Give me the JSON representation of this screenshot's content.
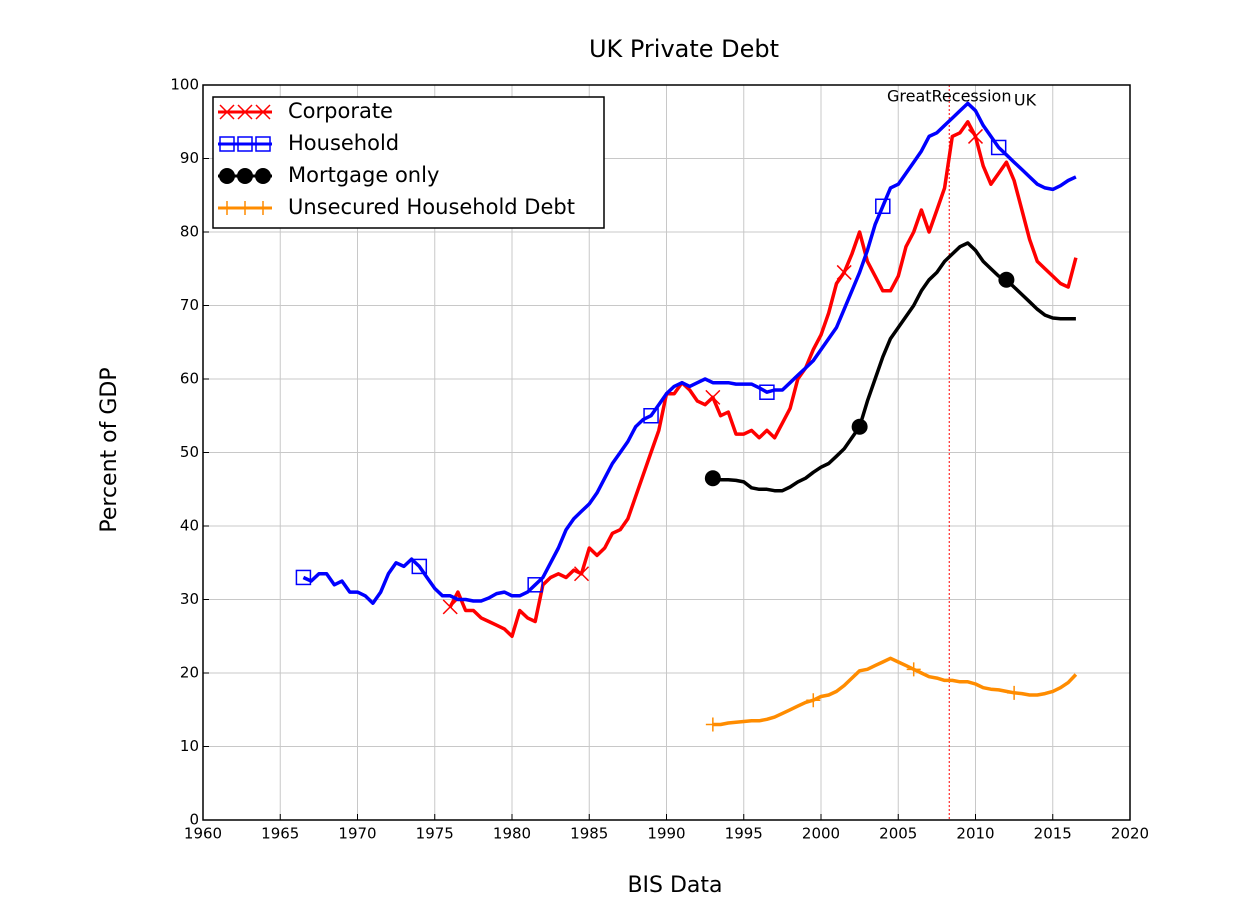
{
  "chart_data": {
    "type": "line",
    "title": "UK Private Debt",
    "xlabel": "BIS Data",
    "ylabel": "Percent of GDP",
    "x": [
      1966.5,
      1967,
      1967.5,
      1968,
      1968.5,
      1969,
      1969.5,
      1970,
      1970.5,
      1971,
      1971.5,
      1972,
      1972.5,
      1973,
      1973.5,
      1974,
      1974.5,
      1975,
      1975.5,
      1976,
      1976.5,
      1977,
      1977.5,
      1978,
      1978.5,
      1979,
      1979.5,
      1980,
      1980.5,
      1981,
      1981.5,
      1982,
      1982.5,
      1983,
      1983.5,
      1984,
      1984.5,
      1985,
      1985.5,
      1986,
      1986.5,
      1987,
      1987.5,
      1988,
      1988.5,
      1989,
      1989.5,
      1990,
      1990.5,
      1991,
      1991.5,
      1992,
      1992.5,
      1993,
      1993.5,
      1994,
      1994.5,
      1995,
      1995.5,
      1996,
      1996.5,
      1997,
      1997.5,
      1998,
      1998.5,
      1999,
      1999.5,
      2000,
      2000.5,
      2001,
      2001.5,
      2002,
      2002.5,
      2003,
      2003.5,
      2004,
      2004.5,
      2005,
      2005.5,
      2006,
      2006.5,
      2007,
      2007.5,
      2008,
      2008.5,
      2009,
      2009.5,
      2010,
      2010.5,
      2011,
      2011.5,
      2012,
      2012.5,
      2013,
      2013.5,
      2014,
      2014.5,
      2015,
      2015.5,
      2016,
      2016.5
    ],
    "series": [
      {
        "name": "Corporate",
        "color": "#ff0000",
        "marker": "x",
        "values": [
          null,
          null,
          null,
          null,
          null,
          null,
          null,
          null,
          null,
          null,
          null,
          null,
          null,
          null,
          null,
          null,
          null,
          null,
          null,
          29,
          31,
          28.5,
          28.5,
          27.5,
          27,
          26.5,
          26,
          25,
          28.5,
          27.5,
          27,
          32,
          33,
          33.5,
          33,
          34,
          33.5,
          37,
          36,
          37,
          39,
          39.5,
          41,
          44,
          47,
          50,
          53,
          58,
          58,
          59.5,
          58.5,
          57,
          56.5,
          57.5,
          55,
          55.5,
          52.5,
          52.5,
          53,
          52,
          53,
          52,
          54,
          56,
          60,
          61.5,
          64,
          66,
          69,
          73,
          74.5,
          77,
          80,
          76,
          74,
          72,
          72,
          74,
          78,
          80,
          83,
          80,
          83,
          86,
          93,
          93.5,
          95,
          93,
          89,
          86.5,
          88,
          89.5,
          87,
          83,
          79,
          76,
          75,
          74,
          73,
          72.5,
          76.5
        ]
      },
      {
        "name": "Household",
        "color": "#0000ff",
        "marker": "square",
        "values": [
          33,
          32.5,
          33.5,
          33.5,
          32,
          32.5,
          31,
          31,
          30.5,
          29.5,
          31,
          33.5,
          35,
          34.5,
          35.5,
          34.5,
          33,
          31.5,
          30.5,
          30.5,
          30,
          30,
          29.8,
          29.8,
          30.2,
          30.8,
          31,
          30.5,
          30.5,
          31,
          32,
          33,
          35,
          37,
          39.5,
          41,
          42,
          43,
          44.5,
          46.5,
          48.5,
          50,
          51.5,
          53.5,
          54.5,
          55,
          56.5,
          58,
          59,
          59.5,
          59,
          59.5,
          60,
          59.5,
          59.5,
          59.5,
          59.3,
          59.3,
          59.3,
          58.8,
          58.2,
          58.5,
          58.5,
          59.5,
          60.5,
          61.5,
          62.5,
          64,
          65.5,
          67,
          69.5,
          72,
          74.5,
          77.5,
          81,
          83.5,
          86,
          86.5,
          88,
          89.5,
          91,
          93,
          93.5,
          94.5,
          95.5,
          96.5,
          97.5,
          96.5,
          94.5,
          93,
          91.5,
          90.5,
          89.5,
          88.5,
          87.5,
          86.5,
          86,
          85.8,
          86.3,
          87,
          87.5
        ]
      },
      {
        "name": "Mortgage only",
        "color": "#000000",
        "marker": "circle",
        "values": [
          null,
          null,
          null,
          null,
          null,
          null,
          null,
          null,
          null,
          null,
          null,
          null,
          null,
          null,
          null,
          null,
          null,
          null,
          null,
          null,
          null,
          null,
          null,
          null,
          null,
          null,
          null,
          null,
          null,
          null,
          null,
          null,
          null,
          null,
          null,
          null,
          null,
          null,
          null,
          null,
          null,
          null,
          null,
          null,
          null,
          null,
          null,
          null,
          null,
          null,
          null,
          null,
          null,
          46.5,
          46.3,
          46.3,
          46.2,
          46,
          45.2,
          45,
          45,
          44.8,
          44.8,
          45.3,
          46,
          46.5,
          47.3,
          48,
          48.5,
          49.5,
          50.5,
          52,
          53.5,
          57,
          60,
          63,
          65.5,
          67,
          68.5,
          70,
          72,
          73.5,
          74.5,
          76,
          77,
          78,
          78.5,
          77.5,
          76,
          75,
          74,
          73.5,
          72.5,
          71.5,
          70.5,
          69.5,
          68.7,
          68.3,
          68.2,
          68.2,
          68.2
        ]
      },
      {
        "name": "Unsecured Household Debt",
        "color": "#ff8c00",
        "marker": "plus",
        "values": [
          null,
          null,
          null,
          null,
          null,
          null,
          null,
          null,
          null,
          null,
          null,
          null,
          null,
          null,
          null,
          null,
          null,
          null,
          null,
          null,
          null,
          null,
          null,
          null,
          null,
          null,
          null,
          null,
          null,
          null,
          null,
          null,
          null,
          null,
          null,
          null,
          null,
          null,
          null,
          null,
          null,
          null,
          null,
          null,
          null,
          null,
          null,
          null,
          null,
          null,
          null,
          null,
          null,
          13,
          13,
          13.2,
          13.3,
          13.4,
          13.5,
          13.5,
          13.7,
          14,
          14.5,
          15,
          15.5,
          16,
          16.3,
          16.8,
          17,
          17.5,
          18.3,
          19.3,
          20.3,
          20.5,
          21,
          21.5,
          22,
          21.5,
          21,
          20.5,
          20,
          19.5,
          19.3,
          19,
          19,
          18.8,
          18.8,
          18.5,
          18,
          17.8,
          17.7,
          17.5,
          17.3,
          17.2,
          17,
          17,
          17.2,
          17.5,
          18,
          18.7,
          19.8
        ]
      }
    ],
    "annotations": [
      {
        "x": 2008.3,
        "label": "GreatRecession",
        "color": "#ff0000"
      }
    ],
    "series_label": "UK",
    "xlim": [
      1960,
      2020
    ],
    "ylim": [
      0,
      100
    ],
    "xticks": [
      1960,
      1965,
      1970,
      1975,
      1980,
      1985,
      1990,
      1995,
      2000,
      2005,
      2010,
      2015,
      2020
    ],
    "yticks": [
      0,
      10,
      20,
      30,
      40,
      50,
      60,
      70,
      80,
      90,
      100
    ],
    "grid": true,
    "legend": "upper left"
  }
}
